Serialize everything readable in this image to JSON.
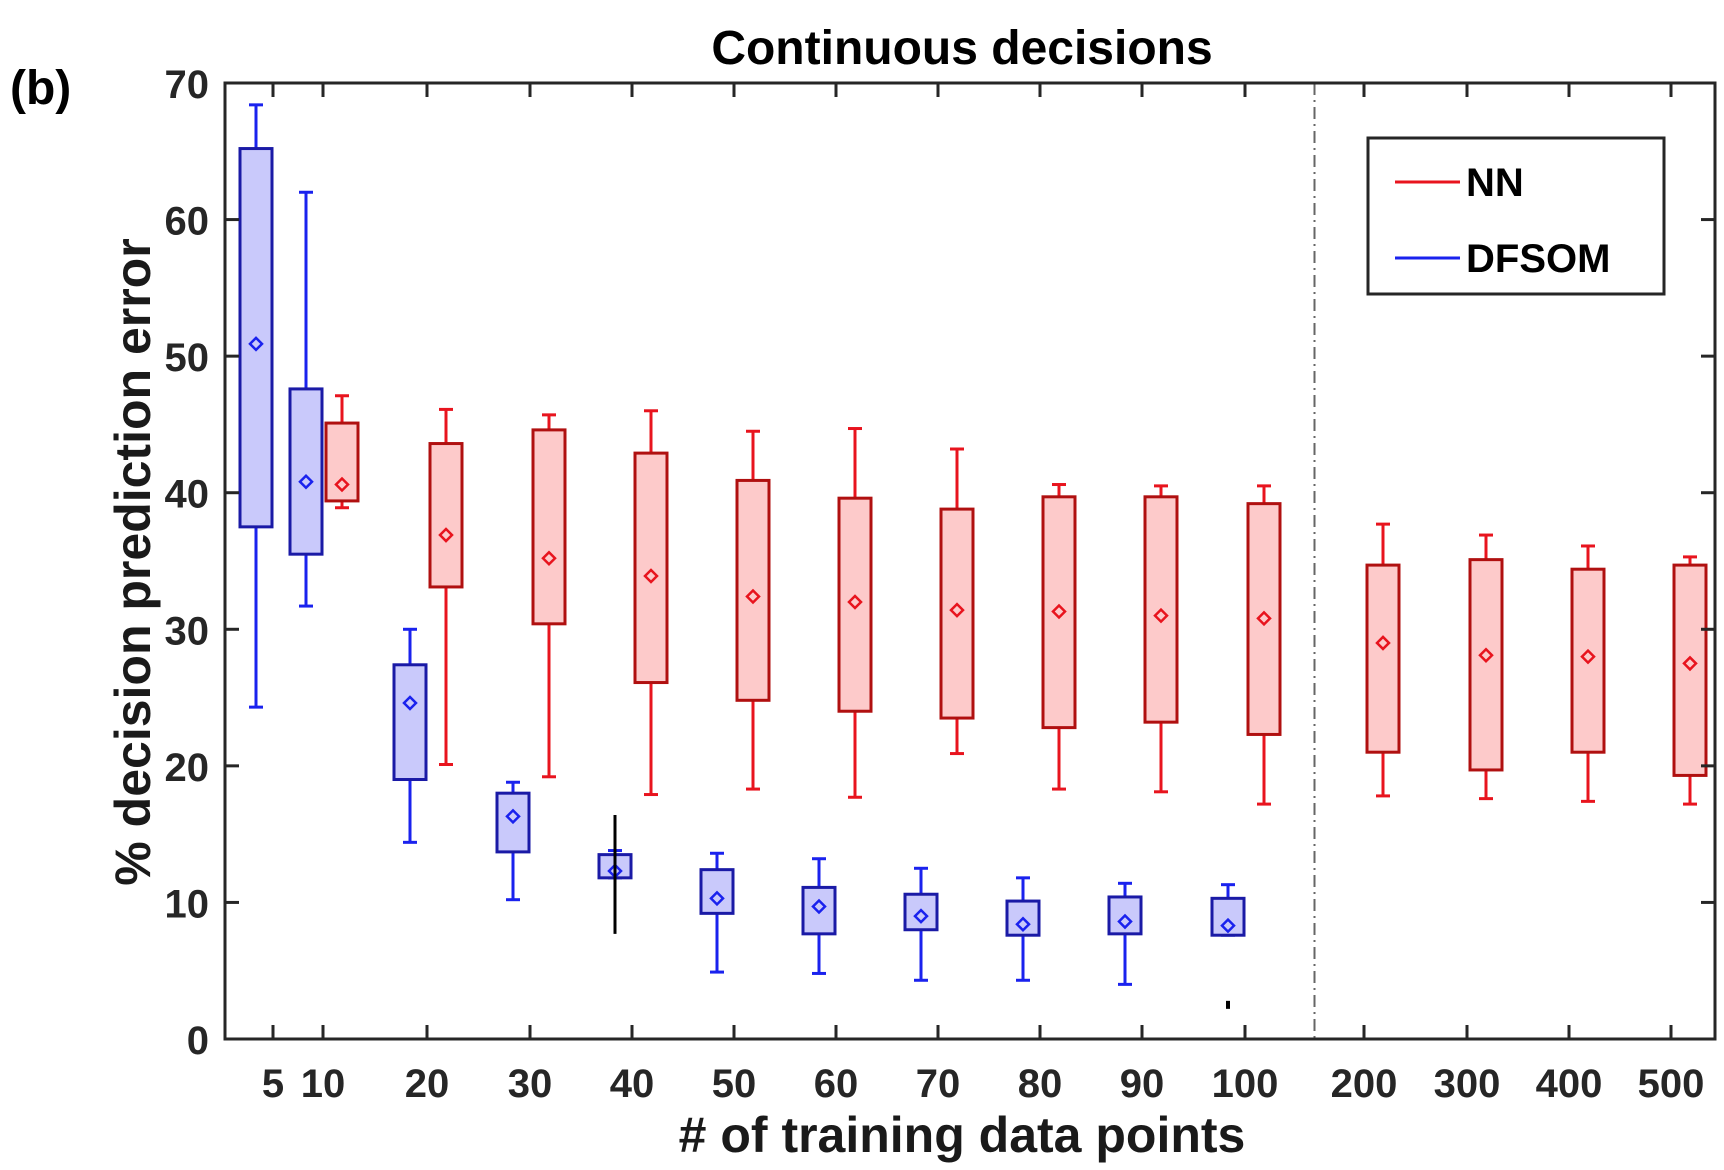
{
  "panel_label": "(b)",
  "chart_data": {
    "type": "box",
    "title": "Continuous decisions",
    "xlabel": "# of training data points",
    "ylabel": "% decision prediction error",
    "ylim": [
      0,
      70
    ],
    "yticks": [
      0,
      10,
      20,
      30,
      40,
      50,
      60,
      70
    ],
    "categories": [
      "5",
      "10",
      "20",
      "30",
      "40",
      "50",
      "60",
      "70",
      "80",
      "90",
      "100",
      "200",
      "300",
      "400",
      "500"
    ],
    "legend": {
      "position": "top-right",
      "entries": [
        "NN",
        "DFSOM"
      ]
    },
    "colors": {
      "NN": {
        "line": "#e8141e",
        "box_edge": "#b01010",
        "fill": "#fdcaca"
      },
      "DFSOM": {
        "line": "#1a22ee",
        "box_edge": "#1a1aa6",
        "fill": "#c9c9fb"
      },
      "outlier": "#000000",
      "separator": "#666666"
    },
    "series": [
      {
        "name": "DFSOM",
        "boxes": [
          {
            "category": "5",
            "whisker_low": 24.3,
            "q1": 37.5,
            "q3": 65.2,
            "whisker_high": 68.4,
            "mean": 50.9
          },
          {
            "category": "10",
            "whisker_low": 31.7,
            "q1": 35.5,
            "q3": 47.6,
            "whisker_high": 62.0,
            "mean": 40.8
          },
          {
            "category": "20",
            "whisker_low": 14.4,
            "q1": 19.0,
            "q3": 27.4,
            "whisker_high": 30.0,
            "mean": 24.6
          },
          {
            "category": "30",
            "whisker_low": 10.2,
            "q1": 13.7,
            "q3": 18.0,
            "whisker_high": 18.8,
            "mean": 16.3
          },
          {
            "category": "40",
            "whisker_low": 11.8,
            "q1": 11.8,
            "q3": 13.5,
            "whisker_high": 13.8,
            "mean": 12.3
          },
          {
            "category": "50",
            "whisker_low": 4.9,
            "q1": 9.2,
            "q3": 12.4,
            "whisker_high": 13.6,
            "mean": 10.3
          },
          {
            "category": "60",
            "whisker_low": 4.8,
            "q1": 7.7,
            "q3": 11.1,
            "whisker_high": 13.2,
            "mean": 9.7
          },
          {
            "category": "70",
            "whisker_low": 4.3,
            "q1": 8.0,
            "q3": 10.6,
            "whisker_high": 12.5,
            "mean": 9.0
          },
          {
            "category": "80",
            "whisker_low": 4.3,
            "q1": 7.6,
            "q3": 10.1,
            "whisker_high": 11.8,
            "mean": 8.4
          },
          {
            "category": "90",
            "whisker_low": 4.0,
            "q1": 7.7,
            "q3": 10.4,
            "whisker_high": 11.4,
            "mean": 8.6
          },
          {
            "category": "100",
            "whisker_low": 7.6,
            "q1": 7.6,
            "q3": 10.3,
            "whisker_high": 11.3,
            "mean": 8.3
          }
        ]
      },
      {
        "name": "NN",
        "boxes": [
          {
            "category": "10",
            "whisker_low": 38.9,
            "q1": 39.4,
            "q3": 45.1,
            "whisker_high": 47.1,
            "mean": 40.6
          },
          {
            "category": "20",
            "whisker_low": 20.1,
            "q1": 33.1,
            "q3": 43.6,
            "whisker_high": 46.1,
            "mean": 36.9
          },
          {
            "category": "30",
            "whisker_low": 19.2,
            "q1": 30.4,
            "q3": 44.6,
            "whisker_high": 45.7,
            "mean": 35.2
          },
          {
            "category": "40",
            "whisker_low": 17.9,
            "q1": 26.1,
            "q3": 42.9,
            "whisker_high": 46.0,
            "mean": 33.9
          },
          {
            "category": "50",
            "whisker_low": 18.3,
            "q1": 24.8,
            "q3": 40.9,
            "whisker_high": 44.5,
            "mean": 32.4
          },
          {
            "category": "60",
            "whisker_low": 17.7,
            "q1": 24.0,
            "q3": 39.6,
            "whisker_high": 44.7,
            "mean": 32.0
          },
          {
            "category": "70",
            "whisker_low": 20.9,
            "q1": 23.5,
            "q3": 38.8,
            "whisker_high": 43.2,
            "mean": 31.4
          },
          {
            "category": "80",
            "whisker_low": 18.3,
            "q1": 22.8,
            "q3": 39.7,
            "whisker_high": 40.6,
            "mean": 31.3
          },
          {
            "category": "90",
            "whisker_low": 18.1,
            "q1": 23.2,
            "q3": 39.7,
            "whisker_high": 40.5,
            "mean": 31.0
          },
          {
            "category": "100",
            "whisker_low": 17.2,
            "q1": 22.3,
            "q3": 39.2,
            "whisker_high": 40.5,
            "mean": 30.8
          },
          {
            "category": "200",
            "whisker_low": 17.8,
            "q1": 21.0,
            "q3": 34.7,
            "whisker_high": 37.7,
            "mean": 29.0
          },
          {
            "category": "300",
            "whisker_low": 17.6,
            "q1": 19.7,
            "q3": 35.1,
            "whisker_high": 36.9,
            "mean": 28.1
          },
          {
            "category": "400",
            "whisker_low": 17.4,
            "q1": 21.0,
            "q3": 34.4,
            "whisker_high": 36.1,
            "mean": 28.0
          },
          {
            "category": "500",
            "whisker_low": 17.2,
            "q1": 19.3,
            "q3": 34.7,
            "whisker_high": 35.3,
            "mean": 27.5
          }
        ]
      }
    ],
    "extra_marks": [
      {
        "category": "40",
        "kind": "vertical-line",
        "low": 7.7,
        "high": 16.4
      },
      {
        "category": "100",
        "kind": "point",
        "value": 2.5
      }
    ],
    "separator_between": [
      "100",
      "200"
    ]
  }
}
